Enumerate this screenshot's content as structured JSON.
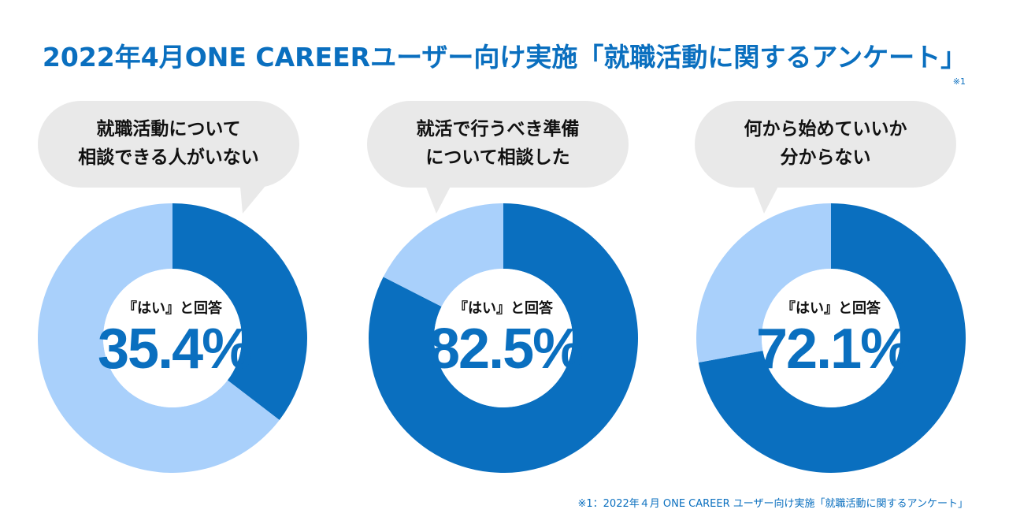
{
  "title": "2022年4月ONE CAREERユーザー向け実施「就職活動に関するアンケート」",
  "note_mark": "※1",
  "footnote": "※1：2022年４月 ONE CAREER ユーザー向け実施「就職活動に関するアンケート」",
  "colors": {
    "primary": "#0a6fbf",
    "light": "#a9d0fb",
    "bubble": "#e9e9e9"
  },
  "chart_data": [
    {
      "type": "pie",
      "question_lines": [
        "就職活動について",
        "相談できる人がいない"
      ],
      "center_label": "『はい』と回答",
      "value_text": "35.4%",
      "values": [
        35.4,
        64.6
      ],
      "colors": [
        "#0a6fbf",
        "#a9d0fb"
      ]
    },
    {
      "type": "pie",
      "question_lines": [
        "就活で行うべき準備",
        "について相談した"
      ],
      "center_label": "『はい』と回答",
      "value_text": "82.5%",
      "values": [
        82.5,
        17.5
      ],
      "colors": [
        "#0a6fbf",
        "#a9d0fb"
      ]
    },
    {
      "type": "pie",
      "question_lines": [
        "何から始めていいか",
        "分からない"
      ],
      "center_label": "『はい』と回答",
      "value_text": "72.1%",
      "values": [
        72.1,
        27.9
      ],
      "colors": [
        "#0a6fbf",
        "#a9d0fb"
      ]
    }
  ]
}
